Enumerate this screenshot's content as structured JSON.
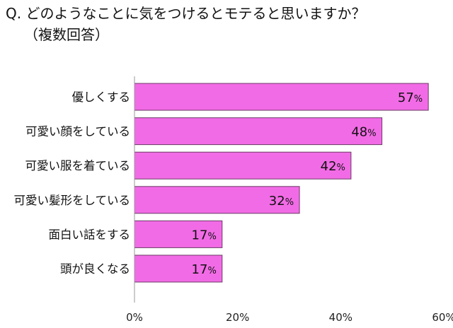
{
  "title": {
    "line1": "Q. どのようなことに気をつけるとモテると思いますか？",
    "line2": "（複数回答）"
  },
  "colors": {
    "bar_fill": "#f26be6",
    "bar_stroke": "#6b3a66",
    "axis": "#999999"
  },
  "chart_data": {
    "type": "bar",
    "orientation": "horizontal",
    "title": "Q. どのようなことに気をつけるとモテると思いますか？（複数回答）",
    "categories": [
      "優しくする",
      "可愛い顔をしている",
      "可愛い服を着ている",
      "可愛い髪形をしている",
      "面白い話をする",
      "頭が良くなる"
    ],
    "values": [
      57,
      48,
      42,
      32,
      17,
      17
    ],
    "value_labels": [
      "57",
      "48",
      "42",
      "32",
      "17",
      "17"
    ],
    "value_unit": "%",
    "xlim": [
      0,
      60
    ],
    "xticks": [
      0,
      20,
      40,
      60
    ],
    "xtick_labels": [
      "0%",
      "20%",
      "40%",
      "60%"
    ],
    "grid": false,
    "legend": "none"
  }
}
